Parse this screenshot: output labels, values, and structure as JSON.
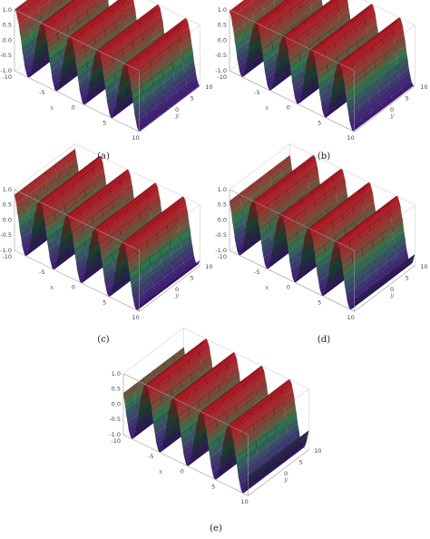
{
  "chart_data": [
    {
      "type": "surface",
      "caption": "(a)",
      "xlabel": "x",
      "ylabel": "y",
      "x_ticks": [
        "-5",
        "0",
        "5",
        "10"
      ],
      "y_ticks": [
        "0",
        "5",
        "10"
      ],
      "z_ticks": [
        "1.0",
        "0.5",
        "0.0",
        "-0.5",
        "-1.0"
      ],
      "z_axis_extra": "-10",
      "xlim": [
        -10,
        10
      ],
      "ylim": [
        -10,
        10
      ],
      "zlim": [
        -1,
        1
      ],
      "wave": {
        "amplitude": 1,
        "cycles_across_x": 4.5,
        "phase": 0.0
      }
    },
    {
      "type": "surface",
      "caption": "(b)",
      "xlabel": "x",
      "ylabel": "y",
      "x_ticks": [
        "-5",
        "0",
        "5",
        "10"
      ],
      "y_ticks": [
        "0",
        "5",
        "10"
      ],
      "z_ticks": [
        "1.0",
        "0.5",
        "0.0",
        "-0.5",
        "-1.0"
      ],
      "z_axis_extra": "-10",
      "xlim": [
        -10,
        10
      ],
      "ylim": [
        -10,
        10
      ],
      "zlim": [
        -1,
        1
      ],
      "wave": {
        "amplitude": 1,
        "cycles_across_x": 4.5,
        "phase": 0.3
      }
    },
    {
      "type": "surface",
      "caption": "(c)",
      "xlabel": "x",
      "ylabel": "y",
      "x_ticks": [
        "-5",
        "0",
        "5",
        "10"
      ],
      "y_ticks": [
        "0",
        "5",
        "10"
      ],
      "z_ticks": [
        "1.0",
        "0.5",
        "0.0",
        "-0.5",
        "-1.0"
      ],
      "z_axis_extra": "-10",
      "xlim": [
        -10,
        10
      ],
      "ylim": [
        -10,
        10
      ],
      "zlim": [
        -1,
        1
      ],
      "wave": {
        "amplitude": 1,
        "cycles_across_x": 4.5,
        "phase": 0.6
      }
    },
    {
      "type": "surface",
      "caption": "(d)",
      "xlabel": "x",
      "ylabel": "y",
      "x_ticks": [
        "-5",
        "0",
        "5",
        "10"
      ],
      "y_ticks": [
        "0",
        "5",
        "10"
      ],
      "z_ticks": [
        "1.0",
        "0.5",
        "0.0",
        "-0.5",
        "-1.0"
      ],
      "z_axis_extra": "-10",
      "xlim": [
        -10,
        10
      ],
      "ylim": [
        -10,
        10
      ],
      "zlim": [
        -1,
        1
      ],
      "wave": {
        "amplitude": 1,
        "cycles_across_x": 4.5,
        "phase": 0.9
      }
    },
    {
      "type": "surface",
      "caption": "(e)",
      "xlabel": "x",
      "ylabel": "y",
      "x_ticks": [
        "-5",
        "0",
        "5",
        "10"
      ],
      "y_ticks": [
        "0",
        "5",
        "10"
      ],
      "z_ticks": [
        "1.0",
        "0.5",
        "0.0",
        "-0.5",
        "-1.0"
      ],
      "z_axis_extra": "-10",
      "xlim": [
        -10,
        10
      ],
      "ylim": [
        -10,
        10
      ],
      "zlim": [
        -1,
        1
      ],
      "wave": {
        "amplitude": 1,
        "cycles_across_x": 4.5,
        "phase": 1.2
      }
    }
  ],
  "colors": {
    "crest": "#d41a2a",
    "mid": "#2a7a4a",
    "trough": "#4a1a8a",
    "box": "#9a9a9a",
    "background": "#ffffff"
  }
}
